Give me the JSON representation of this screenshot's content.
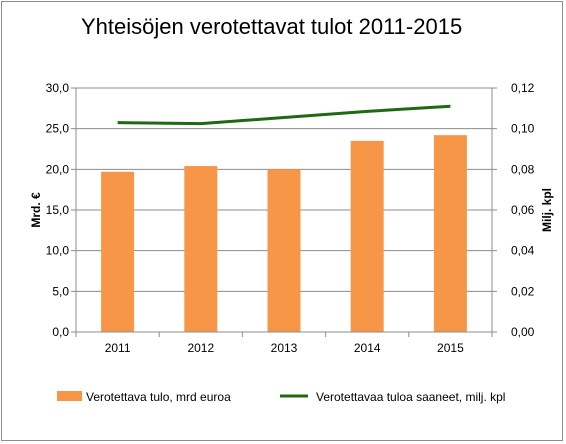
{
  "chart_data": {
    "type": "bar",
    "title": "Yhteisöjen verotettavat tulot 2011-2015",
    "categories": [
      "2011",
      "2012",
      "2013",
      "2014",
      "2015"
    ],
    "ylabel": "Mrd. €",
    "y2label": "Milj. kpl",
    "ylim": [
      0,
      30
    ],
    "y2lim": [
      0,
      0.12
    ],
    "yticks": [
      "0,0",
      "5,0",
      "10,0",
      "15,0",
      "20,0",
      "25,0",
      "30,0"
    ],
    "y2ticks": [
      "0,00",
      "0,02",
      "0,04",
      "0,06",
      "0,08",
      "0,10",
      "0,12"
    ],
    "grid": true,
    "legend_position": "bottom",
    "series": [
      {
        "name": "Verotettava tulo, mrd euroa",
        "type": "bar",
        "axis": "left",
        "color": "#f79646",
        "values": [
          19.7,
          20.4,
          20.0,
          23.5,
          24.2
        ]
      },
      {
        "name": "Verotettavaa tuloa saaneet, milj. kpl",
        "type": "line",
        "axis": "right",
        "color": "#1e6a12",
        "values": [
          0.103,
          0.1025,
          0.1055,
          0.1085,
          0.111
        ]
      }
    ]
  }
}
